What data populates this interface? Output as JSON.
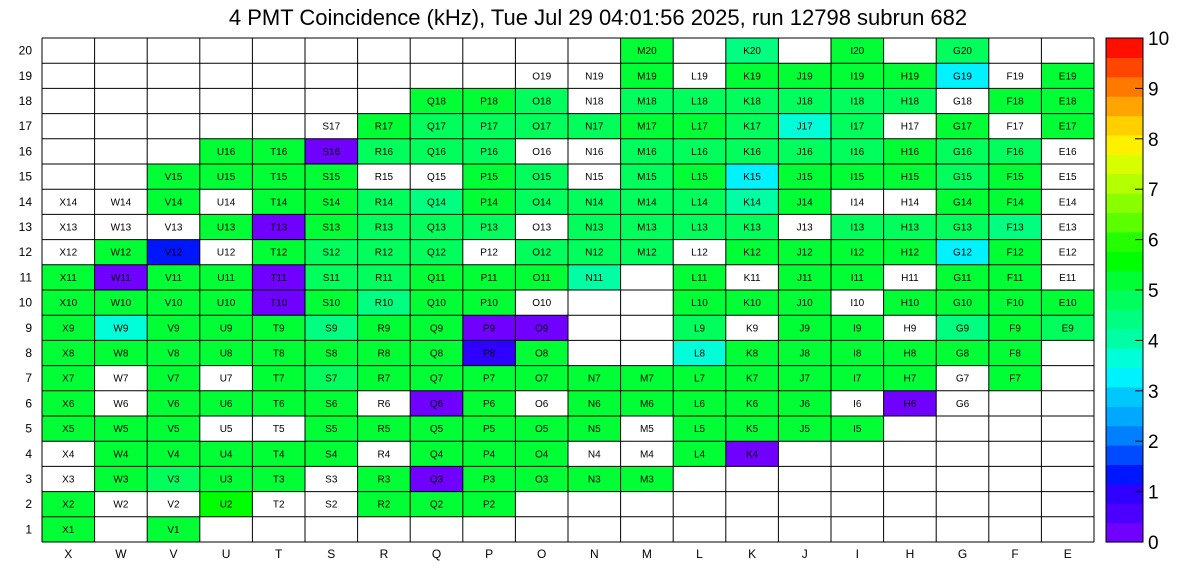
{
  "chart_data": {
    "type": "heatmap",
    "title": "4 PMT Coincidence (kHz), Tue Jul 29 04:01:56 2025, run 12798 subrun 682",
    "columns": [
      "X",
      "W",
      "V",
      "U",
      "T",
      "S",
      "R",
      "Q",
      "P",
      "O",
      "N",
      "M",
      "L",
      "K",
      "J",
      "I",
      "H",
      "G",
      "F",
      "E"
    ],
    "rows": [
      1,
      2,
      3,
      4,
      5,
      6,
      7,
      8,
      9,
      10,
      11,
      12,
      13,
      14,
      15,
      16,
      17,
      18,
      19,
      20
    ],
    "zlim": [
      0,
      10
    ],
    "colorbar_ticks": [
      0,
      1,
      2,
      3,
      4,
      5,
      6,
      7,
      8,
      9,
      10
    ],
    "palette": [
      "#7000ff",
      "#4b00ff",
      "#2f00ff",
      "#0016ff",
      "#004bff",
      "#0080ff",
      "#00a8ff",
      "#00c8ff",
      "#00f2ff",
      "#00ffd8",
      "#00ffa5",
      "#00ff80",
      "#00ff5c",
      "#00ff34",
      "#00ff00",
      "#23ff00",
      "#5bff00",
      "#8aff00",
      "#b4ff00",
      "#d8ff00",
      "#fff000",
      "#ffcf00",
      "#ffa400",
      "#ff7800",
      "#ff4600",
      "#ff0f00"
    ],
    "rows_data": {
      "20": [
        null,
        null,
        null,
        null,
        null,
        null,
        null,
        null,
        null,
        null,
        null,
        5.3,
        null,
        4.5,
        null,
        5.3,
        null,
        4.8,
        null,
        null
      ],
      "19": [
        null,
        null,
        null,
        null,
        null,
        null,
        null,
        null,
        null,
        null,
        null,
        5.3,
        null,
        5.3,
        5.3,
        5.3,
        5.3,
        3.2,
        null,
        5.3
      ],
      "18": [
        null,
        null,
        null,
        null,
        null,
        null,
        null,
        5.3,
        5.3,
        4.8,
        null,
        4.8,
        4.8,
        4.8,
        4.8,
        4.8,
        4.8,
        null,
        5.3,
        5.3
      ],
      "17": [
        null,
        null,
        null,
        null,
        null,
        null,
        5.3,
        4.8,
        4.8,
        4.8,
        4.8,
        5.3,
        5.3,
        4.8,
        3.8,
        4.8,
        null,
        5.3,
        null,
        5.3
      ],
      "16": [
        null,
        null,
        null,
        5.3,
        5.3,
        0.3,
        4.8,
        4.8,
        4.8,
        null,
        null,
        4.8,
        4.8,
        4.8,
        4.8,
        4.8,
        5.3,
        4.8,
        4.8,
        null
      ],
      "15": [
        null,
        null,
        5.3,
        5.3,
        5.3,
        5.3,
        null,
        null,
        5.3,
        4.8,
        null,
        4.8,
        5.3,
        3.1,
        5.3,
        5.3,
        5.3,
        4.8,
        5.3,
        null
      ],
      "14": [
        null,
        null,
        5.3,
        null,
        5.3,
        5.3,
        4.8,
        4.4,
        5.3,
        4.8,
        4.8,
        4.8,
        4.8,
        4.2,
        5.3,
        null,
        null,
        5.3,
        5.3,
        null
      ],
      "13": [
        null,
        null,
        null,
        5.3,
        0.3,
        5.3,
        4.8,
        4.8,
        4.8,
        null,
        4.8,
        4.8,
        4.8,
        4.8,
        null,
        4.8,
        4.8,
        4.8,
        4.4,
        null
      ],
      "12": [
        null,
        5.3,
        1.5,
        null,
        5.3,
        4.8,
        4.8,
        4.8,
        null,
        4.8,
        4.8,
        4.8,
        null,
        5.3,
        5.3,
        5.3,
        5.3,
        3.1,
        5.3,
        null
      ],
      "11": [
        5.3,
        0.3,
        5.3,
        5.3,
        0.3,
        4.8,
        4.8,
        5.3,
        5.3,
        5.3,
        4.1,
        null,
        5.3,
        null,
        5.3,
        5.3,
        null,
        5.3,
        5.3,
        null
      ],
      "10": [
        5.3,
        5.3,
        5.3,
        5.3,
        0.3,
        5.3,
        4.4,
        5.3,
        5.3,
        null,
        null,
        null,
        5.3,
        5.3,
        5.3,
        null,
        5.3,
        5.3,
        5.3,
        5.3
      ],
      "9": [
        5.3,
        3.7,
        5.3,
        5.3,
        5.3,
        4.4,
        5.3,
        5.3,
        0.3,
        0.3,
        null,
        null,
        4.8,
        null,
        5.3,
        5.3,
        null,
        4.3,
        5.3,
        4.8
      ],
      "8": [
        5.3,
        5.3,
        5.3,
        5.3,
        5.3,
        5.3,
        5.3,
        5.3,
        0.8,
        5.3,
        null,
        null,
        3.6,
        5.3,
        5.3,
        5.3,
        5.3,
        5.3,
        5.3,
        null
      ],
      "7": [
        5.3,
        null,
        5.3,
        null,
        5.3,
        4.8,
        5.3,
        5.3,
        5.3,
        5.3,
        5.3,
        5.3,
        5.3,
        5.3,
        5.3,
        5.3,
        5.3,
        null,
        5.3,
        null
      ],
      "6": [
        5.3,
        null,
        5.3,
        5.3,
        5.3,
        5.3,
        null,
        0.3,
        5.3,
        null,
        5.3,
        5.3,
        5.3,
        5.3,
        5.3,
        null,
        0.3,
        null,
        null,
        null
      ],
      "5": [
        5.3,
        5.3,
        5.3,
        null,
        null,
        5.3,
        5.3,
        5.3,
        5.3,
        5.3,
        5.3,
        null,
        5.3,
        5.3,
        5.3,
        5.3,
        null,
        null,
        null,
        null
      ],
      "4": [
        null,
        5.3,
        5.3,
        5.3,
        5.3,
        5.3,
        null,
        5.3,
        5.3,
        5.3,
        null,
        null,
        5.3,
        0.3,
        null,
        null,
        null,
        null,
        null,
        null
      ],
      "3": [
        null,
        5.3,
        4.8,
        5.3,
        5.3,
        null,
        5.3,
        0.3,
        5.3,
        5.3,
        5.3,
        5.3,
        null,
        null,
        null,
        null,
        null,
        null,
        null,
        null
      ],
      "2": [
        5.3,
        null,
        null,
        5.6,
        null,
        null,
        5.3,
        5.3,
        5.3,
        null,
        null,
        null,
        null,
        null,
        null,
        null,
        null,
        null,
        null,
        null
      ],
      "1": [
        5.3,
        null,
        5.3,
        null,
        null,
        null,
        null,
        null,
        null,
        null,
        null,
        null,
        null,
        null,
        null,
        null,
        null,
        null,
        null,
        null
      ]
    },
    "labeled": {
      "20": [
        "M",
        "K",
        "I",
        "G"
      ],
      "19": [
        "O",
        "N",
        "M",
        "L",
        "K",
        "J",
        "I",
        "H",
        "G",
        "F",
        "E"
      ],
      "18": [
        "Q",
        "P",
        "O",
        "N",
        "M",
        "L",
        "K",
        "J",
        "I",
        "H",
        "G",
        "F",
        "E"
      ],
      "17": [
        "S",
        "R",
        "Q",
        "P",
        "O",
        "N",
        "M",
        "L",
        "K",
        "J",
        "I",
        "H",
        "G",
        "F",
        "E"
      ],
      "16": [
        "U",
        "T",
        "S",
        "R",
        "Q",
        "P",
        "O",
        "N",
        "M",
        "L",
        "K",
        "J",
        "I",
        "H",
        "G",
        "F",
        "E"
      ],
      "15": [
        "V",
        "U",
        "T",
        "S",
        "R",
        "Q",
        "P",
        "O",
        "N",
        "M",
        "L",
        "K",
        "J",
        "I",
        "H",
        "G",
        "F",
        "E"
      ],
      "14": [
        "X",
        "W",
        "V",
        "U",
        "T",
        "S",
        "R",
        "Q",
        "P",
        "O",
        "N",
        "M",
        "L",
        "K",
        "J",
        "I",
        "H",
        "G",
        "F",
        "E"
      ],
      "13": [
        "X",
        "W",
        "V",
        "U",
        "T",
        "S",
        "R",
        "Q",
        "P",
        "O",
        "N",
        "M",
        "L",
        "K",
        "J",
        "I",
        "H",
        "G",
        "F",
        "E"
      ],
      "12": [
        "X",
        "W",
        "V",
        "U",
        "T",
        "S",
        "R",
        "Q",
        "P",
        "O",
        "N",
        "M",
        "L",
        "K",
        "J",
        "I",
        "H",
        "G",
        "F",
        "E"
      ],
      "11": [
        "X",
        "W",
        "V",
        "U",
        "T",
        "S",
        "R",
        "Q",
        "P",
        "O",
        "N",
        "L",
        "K",
        "J",
        "I",
        "H",
        "G",
        "F",
        "E"
      ],
      "10": [
        "X",
        "W",
        "V",
        "U",
        "T",
        "S",
        "R",
        "Q",
        "P",
        "O",
        "L",
        "K",
        "J",
        "I",
        "H",
        "G",
        "F",
        "E"
      ],
      "9": [
        "X",
        "W",
        "V",
        "U",
        "T",
        "S",
        "R",
        "Q",
        "P",
        "O",
        "L",
        "K",
        "J",
        "I",
        "H",
        "G",
        "F",
        "E"
      ],
      "8": [
        "X",
        "W",
        "V",
        "U",
        "T",
        "S",
        "R",
        "Q",
        "P",
        "O",
        "L",
        "K",
        "J",
        "I",
        "H",
        "G",
        "F"
      ],
      "7": [
        "X",
        "W",
        "V",
        "U",
        "T",
        "S",
        "R",
        "Q",
        "P",
        "O",
        "N",
        "M",
        "L",
        "K",
        "J",
        "I",
        "H",
        "G",
        "F"
      ],
      "6": [
        "X",
        "W",
        "V",
        "U",
        "T",
        "S",
        "R",
        "Q",
        "P",
        "O",
        "N",
        "M",
        "L",
        "K",
        "J",
        "I",
        "H",
        "G"
      ],
      "5": [
        "X",
        "W",
        "V",
        "U",
        "T",
        "S",
        "R",
        "Q",
        "P",
        "O",
        "N",
        "M",
        "L",
        "K",
        "J",
        "I"
      ],
      "4": [
        "X",
        "W",
        "V",
        "U",
        "T",
        "S",
        "R",
        "Q",
        "P",
        "O",
        "N",
        "M",
        "L",
        "K"
      ],
      "3": [
        "X",
        "W",
        "V",
        "U",
        "T",
        "S",
        "R",
        "Q",
        "P",
        "O",
        "N",
        "M"
      ],
      "2": [
        "X",
        "W",
        "V",
        "U",
        "T",
        "S",
        "R",
        "Q",
        "P"
      ],
      "1": [
        "X",
        "V"
      ]
    }
  }
}
